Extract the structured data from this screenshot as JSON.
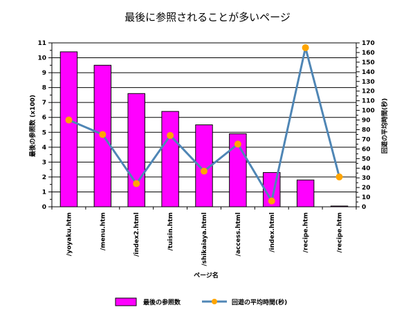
{
  "chart_data": {
    "type": "bar",
    "title": "最後に参照されることが多いページ",
    "xlabel": "ページ名",
    "ylabel_left": "最後の参照数 (x100)",
    "ylabel_right": "回遊の平均時間(秒)",
    "categories": [
      "/yoyaku.htm",
      "/menu.htm",
      "/index2.html",
      "/tuisin.htm",
      "/shikaiaya.html",
      "/access.html",
      "/index.html",
      "/recipe.htm",
      "/recipe.htm"
    ],
    "series": [
      {
        "name": "最後の参照数",
        "type": "bar",
        "axis": "left",
        "color": "#ff00ff",
        "values": [
          10.4,
          9.5,
          7.6,
          6.4,
          5.5,
          4.9,
          2.3,
          1.8,
          0.05
        ]
      },
      {
        "name": "回遊の平均時間(秒)",
        "type": "line",
        "axis": "right",
        "color": "#4f86b5",
        "marker_color": "#ffa500",
        "values": [
          90,
          75,
          24,
          74,
          37,
          65,
          6,
          165,
          31
        ]
      }
    ],
    "ylim_left": [
      0,
      11
    ],
    "yticks_left": [
      0,
      1,
      2,
      3,
      4,
      5,
      6,
      7,
      8,
      9,
      10,
      11
    ],
    "ylim_right": [
      0,
      170
    ],
    "yticks_right": [
      0,
      10,
      20,
      30,
      40,
      50,
      60,
      70,
      80,
      90,
      100,
      110,
      120,
      130,
      140,
      150,
      160,
      170
    ],
    "grid": "horizontal",
    "legend_position": "bottom"
  }
}
